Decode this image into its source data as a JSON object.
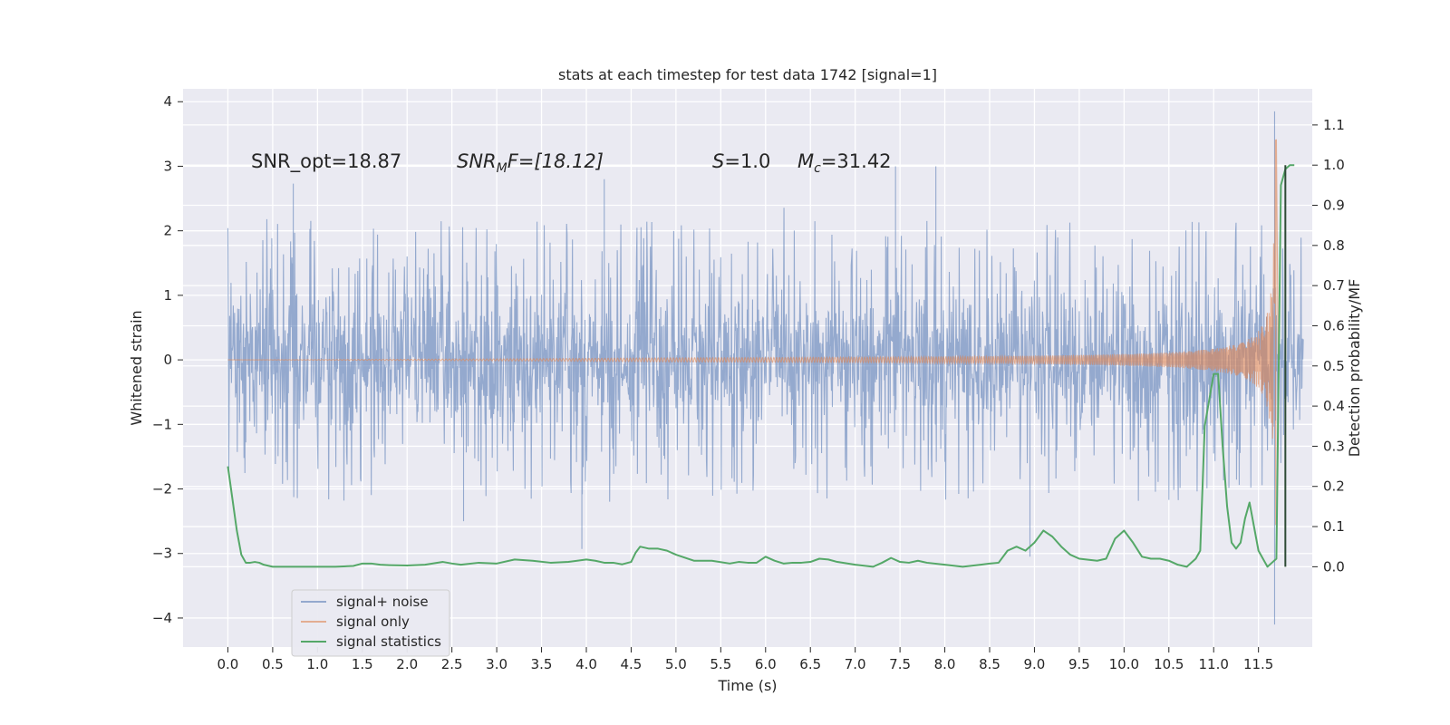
{
  "chart_data": {
    "type": "line",
    "title": "stats at each timestep for test data 1742 [signal=1]",
    "xlabel": "Time (s)",
    "ylabel": "Whitened strain",
    "ylabel_right": "Detection probability/MF",
    "xlim": [
      -0.5,
      12.1
    ],
    "ylim": [
      -4.45,
      4.2
    ],
    "ylim_right": [
      -0.2,
      1.19
    ],
    "x_ticks": [
      "0.0",
      "0.5",
      "1.0",
      "1.5",
      "2.0",
      "2.5",
      "3.0",
      "3.5",
      "4.0",
      "4.5",
      "5.0",
      "5.5",
      "6.0",
      "6.5",
      "7.0",
      "7.5",
      "8.0",
      "8.5",
      "9.0",
      "9.5",
      "10.0",
      "10.5",
      "11.0",
      "11.5"
    ],
    "y_ticks": [
      "4",
      "3",
      "2",
      "1",
      "0",
      "−1",
      "−2",
      "−3",
      "−4"
    ],
    "y_ticks_right": [
      "1.1",
      "1.0",
      "0.9",
      "0.8",
      "0.7",
      "0.6",
      "0.5",
      "0.4",
      "0.3",
      "0.2",
      "0.1",
      "0.0"
    ],
    "grid": true,
    "legend_position": "lower-left",
    "annotations": {
      "snr_opt": "SNR_opt=18.87",
      "snr_mf_label": "SNR",
      "snr_mf_sub": "M",
      "snr_mf_value": "F=[18.12]",
      "s_label": "S",
      "s_value": "=1.0",
      "mc_label": "M",
      "mc_sub": "c",
      "mc_value": "=31.42"
    },
    "series": [
      {
        "name": "signal+ noise",
        "color": "#4c72b0",
        "opacity": 0.55,
        "axis": "left",
        "kind": "noise",
        "x_range": [
          0,
          12.0
        ],
        "typical_band": [
          -1.5,
          1.5
        ],
        "extremes": [
          [
            0.73,
            2.73
          ],
          [
            2.63,
            -2.5
          ],
          [
            3.95,
            -2.93
          ],
          [
            4.2,
            2.8
          ],
          [
            7.45,
            3.0
          ],
          [
            7.9,
            3.0
          ],
          [
            8.95,
            -3.05
          ],
          [
            11.68,
            3.85
          ],
          [
            11.68,
            -4.1
          ]
        ]
      },
      {
        "name": "signal only",
        "color": "#dd8452",
        "opacity": 0.6,
        "axis": "left",
        "kind": "chirp",
        "x_range": [
          0,
          11.7
        ],
        "peak": 3.55
      },
      {
        "name": "signal statistics",
        "color": "#55a868",
        "opacity": 1,
        "axis": "right",
        "kind": "line",
        "x": [
          0.0,
          0.05,
          0.1,
          0.15,
          0.2,
          0.25,
          0.3,
          0.35,
          0.4,
          0.5,
          0.6,
          0.8,
          1.0,
          1.2,
          1.4,
          1.5,
          1.6,
          1.7,
          1.8,
          2.0,
          2.2,
          2.4,
          2.5,
          2.6,
          2.8,
          3.0,
          3.2,
          3.4,
          3.6,
          3.8,
          4.0,
          4.1,
          4.2,
          4.3,
          4.4,
          4.5,
          4.55,
          4.6,
          4.7,
          4.8,
          4.9,
          5.0,
          5.2,
          5.4,
          5.6,
          5.7,
          5.8,
          5.9,
          6.0,
          6.1,
          6.2,
          6.3,
          6.4,
          6.5,
          6.6,
          6.7,
          6.8,
          7.0,
          7.2,
          7.3,
          7.4,
          7.5,
          7.6,
          7.7,
          7.8,
          8.0,
          8.2,
          8.4,
          8.5,
          8.6,
          8.7,
          8.8,
          8.9,
          9.0,
          9.1,
          9.2,
          9.3,
          9.4,
          9.5,
          9.7,
          9.8,
          9.9,
          10.0,
          10.1,
          10.2,
          10.3,
          10.4,
          10.5,
          10.6,
          10.7,
          10.8,
          10.85,
          10.9,
          11.0,
          11.05,
          11.1,
          11.15,
          11.2,
          11.25,
          11.3,
          11.35,
          11.4,
          11.5,
          11.6,
          11.65,
          11.7,
          11.75,
          11.8,
          11.85,
          11.9
        ],
        "y": [
          0.25,
          0.17,
          0.09,
          0.03,
          0.01,
          0.01,
          0.012,
          0.01,
          0.005,
          0.0,
          0.0,
          0.0,
          0.0,
          0.0,
          0.002,
          0.008,
          0.008,
          0.005,
          0.004,
          0.003,
          0.005,
          0.012,
          0.008,
          0.005,
          0.01,
          0.008,
          0.018,
          0.015,
          0.01,
          0.012,
          0.018,
          0.015,
          0.01,
          0.01,
          0.006,
          0.012,
          0.035,
          0.05,
          0.045,
          0.045,
          0.04,
          0.03,
          0.015,
          0.015,
          0.008,
          0.012,
          0.01,
          0.01,
          0.025,
          0.015,
          0.008,
          0.01,
          0.01,
          0.012,
          0.02,
          0.018,
          0.012,
          0.005,
          0.0,
          0.01,
          0.022,
          0.012,
          0.01,
          0.015,
          0.01,
          0.005,
          0.0,
          0.005,
          0.008,
          0.01,
          0.04,
          0.05,
          0.04,
          0.06,
          0.09,
          0.075,
          0.05,
          0.03,
          0.02,
          0.015,
          0.02,
          0.07,
          0.09,
          0.06,
          0.025,
          0.02,
          0.02,
          0.015,
          0.005,
          0.0,
          0.02,
          0.04,
          0.35,
          0.48,
          0.48,
          0.3,
          0.15,
          0.06,
          0.045,
          0.06,
          0.12,
          0.16,
          0.04,
          0.0,
          0.01,
          0.02,
          0.95,
          0.99,
          1.0,
          1.0
        ]
      }
    ],
    "vertical_marker": {
      "color": "#2d4a35",
      "x": 11.8,
      "y_range_right": [
        0.0,
        1.0
      ]
    }
  }
}
